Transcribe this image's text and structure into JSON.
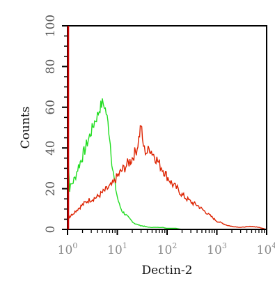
{
  "chart_data": {
    "type": "line",
    "title": "",
    "xlabel": "Dectin-2",
    "ylabel": "Counts",
    "x_scale": "log",
    "xlim": [
      1,
      10000
    ],
    "ylim": [
      0,
      100
    ],
    "x_ticks": [
      {
        "value": 1,
        "base": "10",
        "exp": "0"
      },
      {
        "value": 10,
        "base": "10",
        "exp": "1"
      },
      {
        "value": 100,
        "base": "10",
        "exp": "2"
      },
      {
        "value": 1000,
        "base": "10",
        "exp": "3"
      },
      {
        "value": 10000,
        "base": "10",
        "exp": "4"
      }
    ],
    "y_ticks": [
      "0",
      "20",
      "40",
      "60",
      "80",
      "100"
    ],
    "y_tick_values": [
      0,
      20,
      40,
      60,
      80,
      100
    ],
    "grid": false,
    "colors": {
      "frame": "#000000",
      "left_edge": "#cc0000"
    },
    "series": [
      {
        "color": "#22dd22",
        "x": [
          1,
          1.02,
          1.05,
          1.1,
          1.2,
          1.4,
          1.6,
          1.8,
          2.0,
          2.3,
          2.6,
          3.0,
          3.5,
          4.0,
          4.5,
          5.0,
          5.5,
          6.0,
          6.5,
          7.0,
          7.5,
          8.0,
          9.0,
          10,
          11,
          12.5,
          15,
          18,
          22,
          28,
          35,
          45,
          60,
          80,
          100,
          150,
          200,
          400,
          1000,
          3000,
          10000
        ],
        "y": [
          62,
          48,
          30,
          20,
          22,
          25,
          30,
          33,
          36,
          40,
          44,
          48,
          53,
          56,
          60,
          62,
          61,
          57,
          52,
          46,
          38,
          30,
          22,
          16,
          12,
          9,
          7,
          5,
          3,
          2,
          1.5,
          1,
          1,
          1,
          0.5,
          0.5,
          0,
          0,
          0,
          0,
          0
        ]
      },
      {
        "color": "#dd2200",
        "x": [
          1,
          1.03,
          1.1,
          1.3,
          1.6,
          2.0,
          2.5,
          3.2,
          4.0,
          5.0,
          6.3,
          8.0,
          10,
          12.5,
          16,
          20,
          25,
          28,
          30,
          32,
          35,
          40,
          45,
          50,
          60,
          70,
          80,
          100,
          130,
          160,
          200,
          250,
          320,
          400,
          500,
          630,
          800,
          1000,
          1300,
          1600,
          2000,
          3000,
          5000,
          7000,
          10000
        ],
        "y": [
          28,
          8,
          6,
          8,
          10,
          12,
          14,
          15,
          16,
          18,
          20,
          22,
          26,
          29,
          32,
          35,
          40,
          47,
          52,
          44,
          39,
          38,
          40,
          38,
          35,
          32,
          30,
          26,
          22,
          20,
          17,
          15,
          13,
          12,
          10,
          8,
          6,
          4,
          3,
          2,
          1.5,
          1,
          1.5,
          1,
          0
        ]
      }
    ]
  }
}
